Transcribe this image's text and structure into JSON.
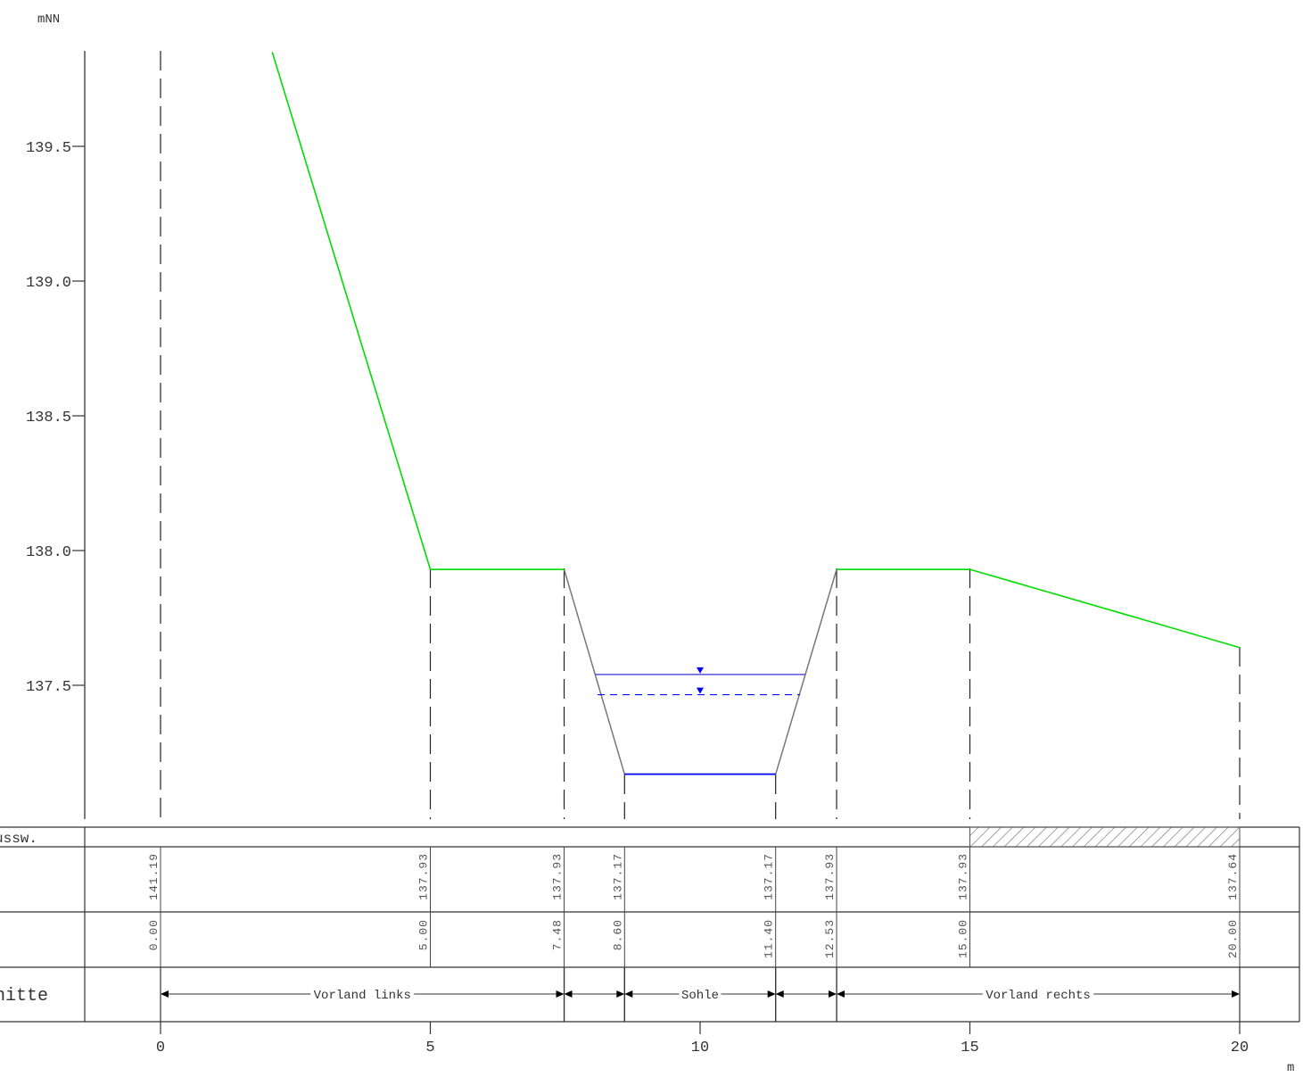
{
  "y_unit": "mNN",
  "x_unit": "m",
  "chart_data": {
    "type": "cross-section profile",
    "x_range": [
      -1.4,
      21.3
    ],
    "y_range": [
      137.0,
      139.85
    ],
    "y_ticks": [
      137.5,
      138.0,
      138.5,
      139.0,
      139.5
    ],
    "y_tick_labels": [
      "137.5",
      "138.0",
      "138.5",
      "139.0",
      "139.5"
    ],
    "x_ticks": [
      0,
      5,
      10,
      15,
      20
    ],
    "x_tick_labels": [
      "0",
      "5",
      "10",
      "15",
      "20"
    ],
    "terrain_left": [
      [
        2.07,
        139.85
      ],
      [
        5.0,
        137.93
      ],
      [
        7.48,
        137.93
      ]
    ],
    "channel": [
      [
        7.48,
        137.93
      ],
      [
        8.6,
        137.17
      ],
      [
        11.4,
        137.17
      ],
      [
        12.53,
        137.93
      ]
    ],
    "terrain_right": [
      [
        12.53,
        137.93
      ],
      [
        15.0,
        137.93
      ],
      [
        20.0,
        137.64
      ]
    ],
    "water_level_solid": {
      "value": 137.54,
      "x_from": 8.05,
      "x_to": 11.95
    },
    "water_level_dashed": {
      "value": 137.465,
      "x_from": 8.1,
      "x_to": 11.85
    },
    "bed_line": {
      "value": 137.17,
      "x_from": 8.6,
      "x_to": 11.4
    },
    "stations": [
      0.0,
      5.0,
      7.48,
      8.6,
      11.4,
      12.53,
      15.0,
      20.0
    ],
    "elevations": [
      "141.19",
      "137.93",
      "137.93",
      "137.17",
      "137.17",
      "137.93",
      "137.93",
      "137.64"
    ],
    "distances": [
      "0.00",
      "5.00",
      "7.48",
      "8.60",
      "11.40",
      "12.53",
      "15.00",
      "20.00"
    ],
    "hatched_range": [
      15.0,
      20.0
    ],
    "colors": {
      "terrain": "#00dd00",
      "channel": "#777777",
      "water": "#0000ff",
      "water_line": "#5555dd",
      "axis": "#333333"
    }
  },
  "table": {
    "row1_label": "ussw.",
    "row4_label": "nitte",
    "segments": [
      {
        "label": "Vorland links",
        "from": 0.0,
        "to": 7.48
      },
      {
        "label": "",
        "from": 7.48,
        "to": 8.6
      },
      {
        "label": "Sohle",
        "from": 8.6,
        "to": 11.4
      },
      {
        "label": "",
        "from": 11.4,
        "to": 12.53
      },
      {
        "label": "Vorland rechts",
        "from": 12.53,
        "to": 20.0
      }
    ]
  }
}
